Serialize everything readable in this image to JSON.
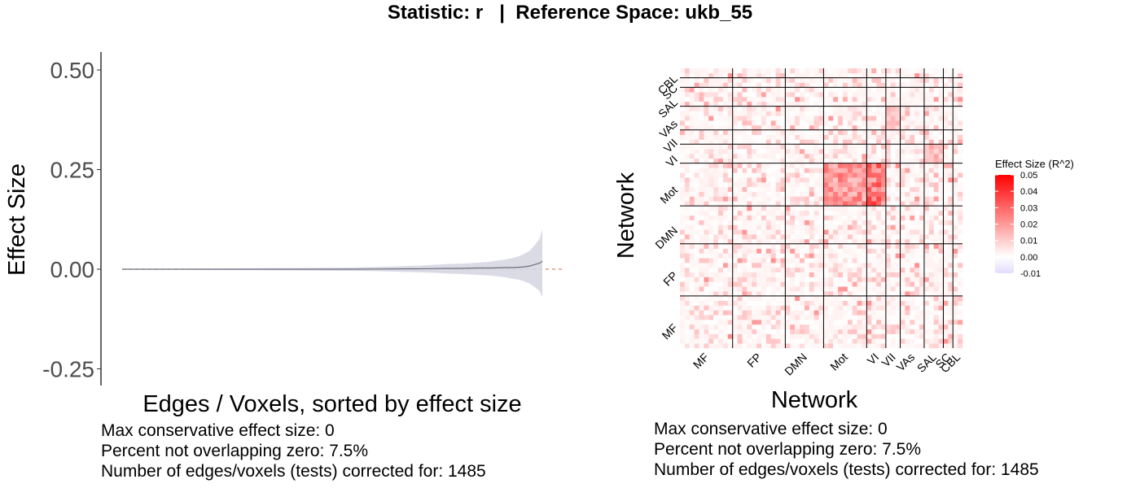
{
  "title": "Statistic: r   |  Reference Space: ukb_55",
  "chart_data": [
    {
      "type": "area",
      "title": "",
      "xlabel": "Edges / Voxels, sorted by effect size",
      "ylabel": "Effect Size",
      "ylim": [
        -0.28,
        0.54
      ],
      "yticks": [
        "0.50",
        "0.25",
        "0.00",
        "-0.25"
      ],
      "ytick_values": [
        0.5,
        0.25,
        0.0,
        -0.25
      ],
      "reference_line": 0.0,
      "grid": false,
      "n_points": 1485,
      "series": [
        {
          "x": [
            0,
            200,
            400,
            600,
            800,
            900,
            1000,
            1050,
            1100,
            1150,
            1200,
            1250,
            1300,
            1350,
            1380,
            1400,
            1420,
            1440,
            1460,
            1475,
            1485
          ],
          "estimate": [
            0.0,
            0.0,
            0.0,
            0.0,
            0.0,
            0.0005,
            0.001,
            0.001,
            0.0015,
            0.002,
            0.002,
            0.003,
            0.003,
            0.004,
            0.004,
            0.005,
            0.006,
            0.008,
            0.012,
            0.015,
            0.02
          ],
          "lower": [
            -0.001,
            -0.001,
            -0.002,
            -0.003,
            -0.004,
            -0.005,
            -0.007,
            -0.008,
            -0.009,
            -0.011,
            -0.012,
            -0.014,
            -0.016,
            -0.02,
            -0.024,
            -0.026,
            -0.03,
            -0.036,
            -0.046,
            -0.054,
            -0.07
          ],
          "upper": [
            0.001,
            0.001,
            0.002,
            0.003,
            0.004,
            0.006,
            0.008,
            0.009,
            0.011,
            0.013,
            0.014,
            0.016,
            0.019,
            0.024,
            0.028,
            0.032,
            0.038,
            0.046,
            0.062,
            0.076,
            0.1
          ]
        }
      ]
    },
    {
      "type": "heatmap",
      "title": "",
      "xlabel": "Network",
      "ylabel": "Network",
      "networks": [
        "MF",
        "FP",
        "DMN",
        "Mot",
        "VI",
        "VII",
        "VAs",
        "SAL",
        "SC",
        "CBL"
      ],
      "network_sizes": [
        11,
        11,
        8,
        9,
        4,
        3,
        5,
        4,
        2,
        2
      ],
      "legend_title": "Effect Size (R^2)",
      "legend_ticks": [
        "0.05",
        "0.04",
        "0.03",
        "0.02",
        "0.01",
        "0.00",
        "-0.01"
      ],
      "legend_values": [
        0.05,
        0.04,
        0.03,
        0.02,
        0.01,
        0.0,
        -0.01
      ],
      "color_low": "#e3dcfc",
      "color_mid": "#ffffff",
      "color_high": "#ff0000",
      "value_range": [
        -0.01,
        0.05
      ],
      "highlighted_cells": [
        {
          "row": "Mot",
          "col": "Mot",
          "value": 0.03
        },
        {
          "row": "Mot",
          "col": "VI",
          "value": 0.04
        },
        {
          "row": "VI",
          "col": "SAL",
          "value": 0.02
        },
        {
          "row": "VAs",
          "col": "VII",
          "value": 0.015
        }
      ]
    }
  ],
  "notes_left": [
    "Max conservative effect size: 0",
    "Percent not overlapping zero: 7.5%",
    "Number of edges/voxels (tests) corrected for: 1485"
  ],
  "notes_right": [
    "Max conservative effect size: 0",
    "Percent not overlapping zero: 7.5%",
    "Number of edges/voxels (tests) corrected for: 1485"
  ],
  "colors": {
    "band": "#d6d7e2",
    "line": "#6e6e7e",
    "refline": "#e0836e",
    "grid_lines": "#000000"
  }
}
